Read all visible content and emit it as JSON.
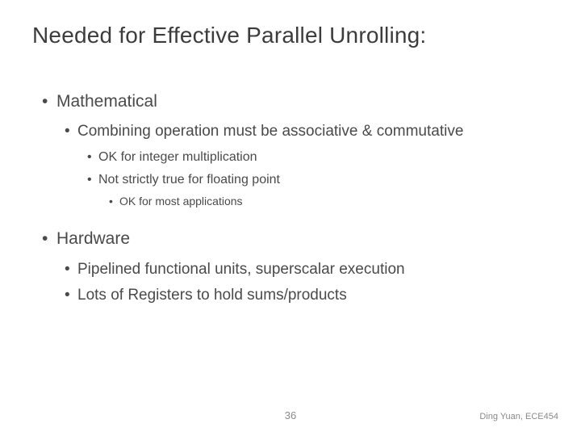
{
  "title": "Needed for Effective Parallel Unrolling:",
  "bullets": {
    "b1": "Mathematical",
    "b1_1": "Combining operation must be associative & commutative",
    "b1_1_1": "OK for integer multiplication",
    "b1_1_2": "Not strictly true for floating point",
    "b1_1_2_1": "OK for most applications",
    "b2": "Hardware",
    "b2_1": "Pipelined functional units, superscalar execution",
    "b2_2": "Lots of Registers to hold sums/products"
  },
  "page_number": "36",
  "footer": "Ding Yuan, ECE454",
  "colors": {
    "title": "#3c3c3c",
    "body": "#4a4a4a",
    "footer": "#8a8a8a",
    "background": "#ffffff"
  },
  "fontsizes": {
    "title": 28,
    "l1": 21,
    "l2": 19,
    "l3": 16,
    "l4": 14,
    "page_number": 13,
    "footer": 11
  }
}
